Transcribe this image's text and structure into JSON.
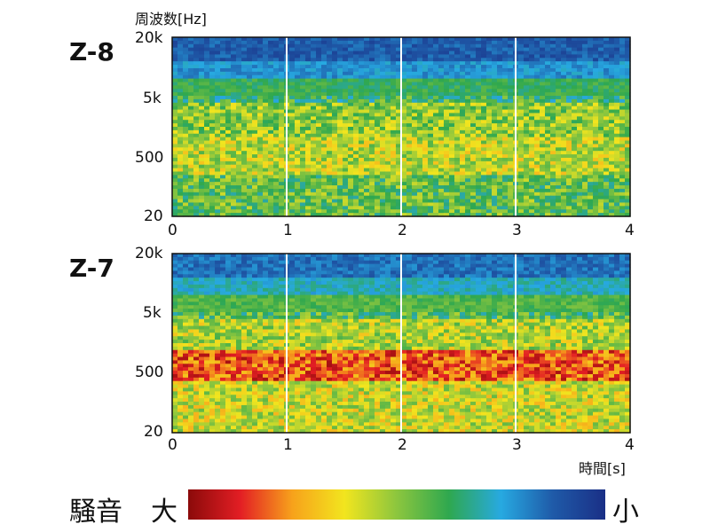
{
  "y_axis_title": "周波数[Hz]",
  "x_axis_title": "時間[s]",
  "legend": {
    "label": "騒音",
    "high": "大",
    "low": "小"
  },
  "chart_data": [
    {
      "type": "heatmap",
      "panel": "Z-8",
      "x_ticks": [
        "0",
        "1",
        "2",
        "3",
        "4"
      ],
      "y_ticks": [
        "20k",
        "5k",
        "500",
        "20"
      ],
      "xlim": [
        0,
        4
      ],
      "ylim_hz": [
        20,
        20000
      ],
      "y_scale": "log",
      "marker_lines_s": [
        1,
        2,
        3
      ],
      "bands": [
        {
          "hz": [
            8000,
            20000
          ],
          "level": 0.12
        },
        {
          "hz": [
            4000,
            8000
          ],
          "level": 0.22
        },
        {
          "hz": [
            1500,
            4000
          ],
          "level": 0.38
        },
        {
          "hz": [
            400,
            1500
          ],
          "level": 0.5
        },
        {
          "hz": [
            100,
            400
          ],
          "level": 0.56
        },
        {
          "hz": [
            20,
            100
          ],
          "level": 0.44
        }
      ]
    },
    {
      "type": "heatmap",
      "panel": "Z-7",
      "x_ticks": [
        "0",
        "1",
        "2",
        "3",
        "4"
      ],
      "y_ticks": [
        "20k",
        "5k",
        "500",
        "20"
      ],
      "xlim": [
        0,
        4
      ],
      "ylim_hz": [
        20,
        20000
      ],
      "y_scale": "log",
      "marker_lines_s": [
        1,
        2,
        3
      ],
      "bands": [
        {
          "hz": [
            8000,
            20000
          ],
          "level": 0.16
        },
        {
          "hz": [
            4000,
            8000
          ],
          "level": 0.28
        },
        {
          "hz": [
            1500,
            4000
          ],
          "level": 0.42
        },
        {
          "hz": [
            500,
            1500
          ],
          "level": 0.55
        },
        {
          "hz": [
            150,
            500
          ],
          "level": 0.82
        },
        {
          "hz": [
            20,
            150
          ],
          "level": 0.58
        }
      ]
    }
  ],
  "colors": {
    "scale": [
      "#8b0a0a",
      "#e31e24",
      "#f7a21b",
      "#f2e51e",
      "#8cc63e",
      "#2fa84f",
      "#27a9e1",
      "#1f5aa8",
      "#1a2f86"
    ],
    "marker_line": "#ffffff",
    "frame": "#111111"
  }
}
